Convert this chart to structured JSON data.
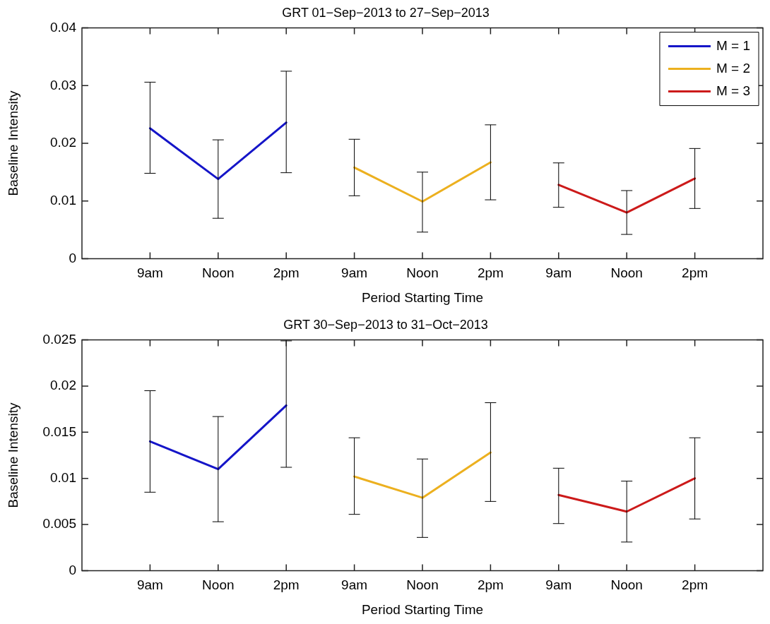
{
  "chart_data": [
    {
      "type": "line",
      "title": "GRT 01−Sep−2013 to 27−Sep−2013",
      "xlabel": "Period Starting Time",
      "ylabel": "Baseline Intensity",
      "categories": [
        null,
        "9am",
        "Noon",
        "2pm",
        "9am",
        "Noon",
        "2pm",
        "9am",
        "Noon",
        "2pm",
        null
      ],
      "ylim": [
        0,
        0.04
      ],
      "yticks": [
        0,
        0.01,
        0.02,
        0.03,
        0.04
      ],
      "legend": "top right",
      "line_style": "solid",
      "series": [
        {
          "name": "M = 1",
          "color": "#1515c8",
          "values": [
            null,
            0.0226,
            0.0138,
            0.0236,
            null,
            null,
            null,
            null,
            null,
            null,
            null
          ],
          "errors": [
            null,
            [
              0.0148,
              0.0306
            ],
            [
              0.007,
              0.0206
            ],
            [
              0.0149,
              0.0325
            ],
            null,
            null,
            null,
            null,
            null,
            null,
            null
          ]
        },
        {
          "name": "M = 2",
          "color": "#ecb01f",
          "values": [
            null,
            null,
            null,
            null,
            0.0158,
            0.0099,
            0.0167,
            null,
            null,
            null,
            null
          ],
          "errors": [
            null,
            null,
            null,
            null,
            [
              0.0109,
              0.0207
            ],
            [
              0.0046,
              0.015
            ],
            [
              0.0102,
              0.0232
            ],
            null,
            null,
            null,
            null
          ]
        },
        {
          "name": "M = 3",
          "color": "#cc1a1a",
          "values": [
            null,
            null,
            null,
            null,
            null,
            null,
            null,
            0.0128,
            0.008,
            0.0139,
            null
          ],
          "errors": [
            null,
            null,
            null,
            null,
            null,
            null,
            null,
            [
              0.0089,
              0.0166
            ],
            [
              0.0042,
              0.0118
            ],
            [
              0.0087,
              0.0191
            ],
            null
          ]
        }
      ]
    },
    {
      "type": "line",
      "title": "GRT 30−Sep−2013 to 31−Oct−2013",
      "xlabel": "Period Starting Time",
      "ylabel": "Baseline Intensity",
      "categories": [
        null,
        "9am",
        "Noon",
        "2pm",
        "9am",
        "Noon",
        "2pm",
        "9am",
        "Noon",
        "2pm",
        null
      ],
      "ylim": [
        0,
        0.025
      ],
      "yticks": [
        0,
        0.005,
        0.01,
        0.015,
        0.02,
        0.025
      ],
      "line_style": "solid",
      "series": [
        {
          "color": "#1515c8",
          "values": [
            null,
            0.014,
            0.011,
            0.0179,
            null,
            null,
            null,
            null,
            null,
            null,
            null
          ],
          "errors": [
            null,
            [
              0.0085,
              0.0195
            ],
            [
              0.0053,
              0.0167
            ],
            [
              0.0112,
              0.0249
            ],
            null,
            null,
            null,
            null,
            null,
            null,
            null
          ]
        },
        {
          "color": "#ecb01f",
          "values": [
            null,
            null,
            null,
            null,
            0.0102,
            0.0079,
            0.0128,
            null,
            null,
            null,
            null
          ],
          "errors": [
            null,
            null,
            null,
            null,
            [
              0.0061,
              0.0144
            ],
            [
              0.0036,
              0.0121
            ],
            [
              0.0075,
              0.0182
            ],
            null,
            null,
            null,
            null
          ]
        },
        {
          "color": "#cc1a1a",
          "values": [
            null,
            null,
            null,
            null,
            null,
            null,
            null,
            0.0082,
            0.0064,
            0.01,
            null
          ],
          "errors": [
            null,
            null,
            null,
            null,
            null,
            null,
            null,
            [
              0.0051,
              0.0111
            ],
            [
              0.0031,
              0.0097
            ],
            [
              0.0056,
              0.0144
            ],
            null
          ]
        }
      ]
    }
  ]
}
